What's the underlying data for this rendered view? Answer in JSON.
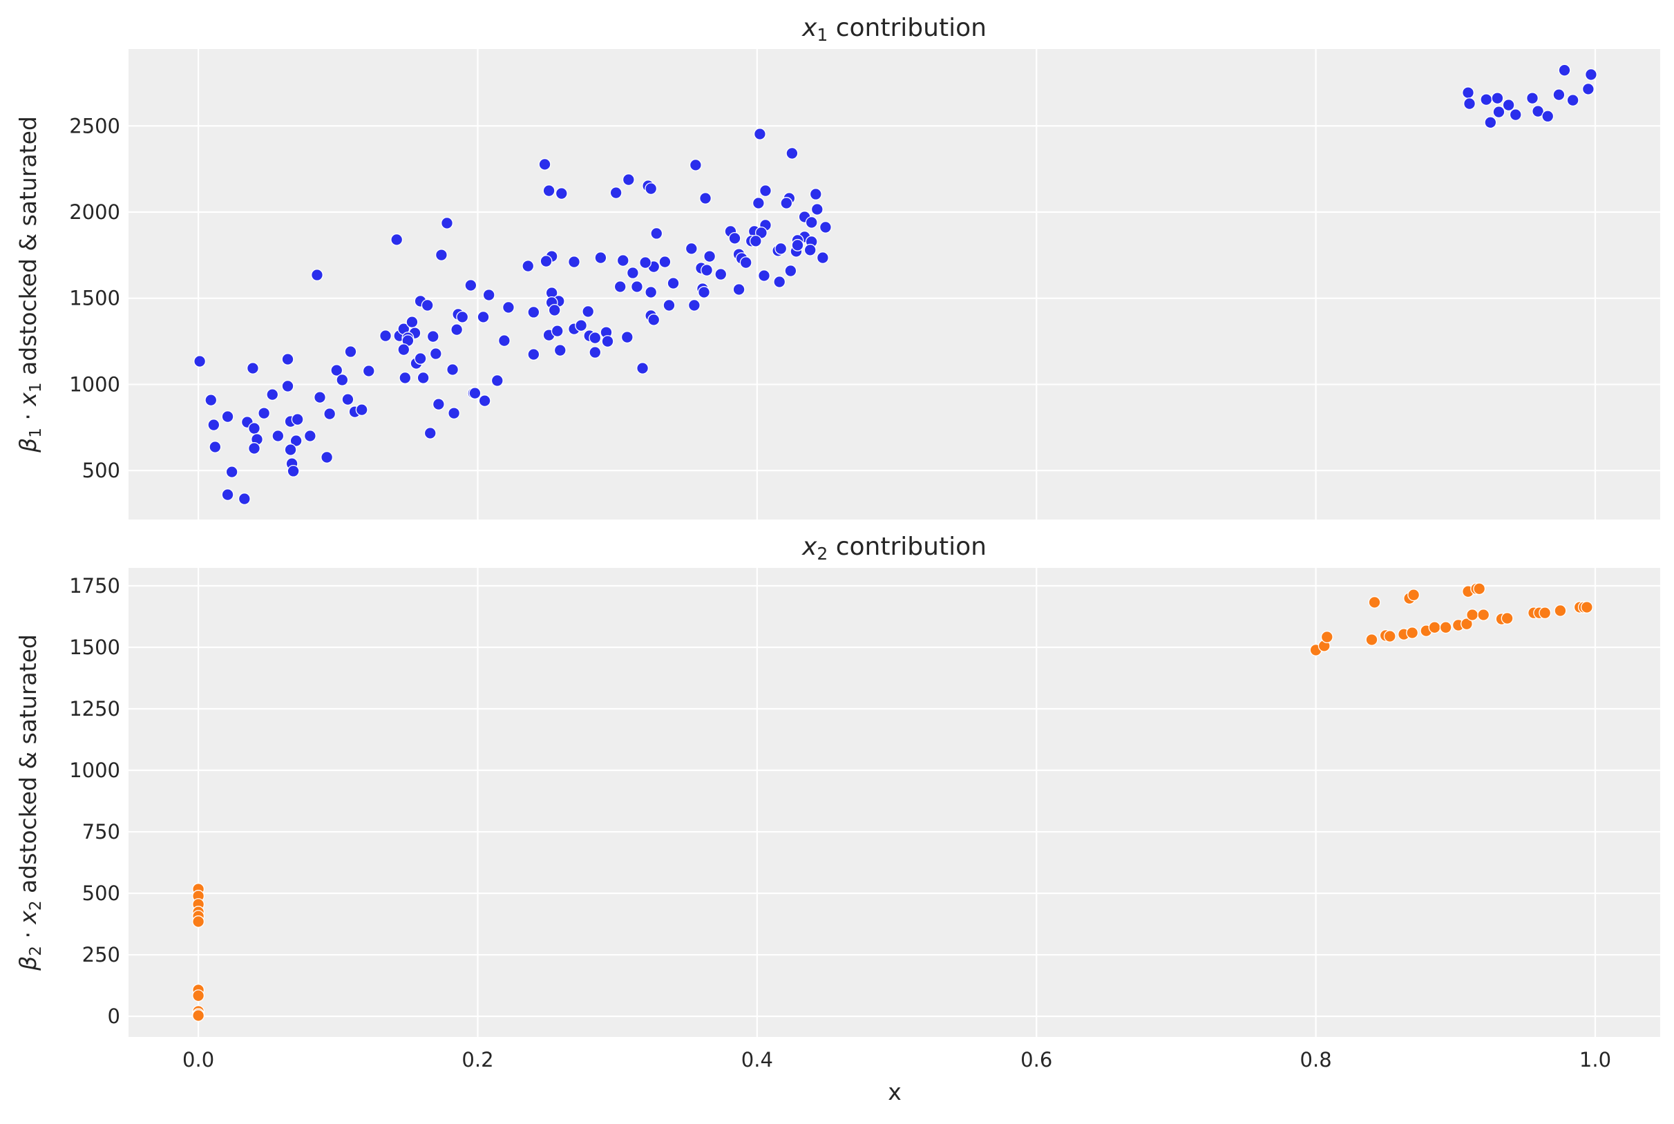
{
  "chart_data": [
    {
      "type": "scatter",
      "title": "x1 contribution",
      "title_var": "x",
      "title_sub": "1",
      "title_rest": " contribution",
      "xlabel": "",
      "ylabel": "β1 · x1 adstocked & saturated",
      "ylabel_parts": {
        "beta": "β",
        "beta_sub": "1",
        "dot": "·",
        "var": "x",
        "var_sub": "1",
        "rest": "adstocked & saturated"
      },
      "xlim": [
        -0.05,
        1.0465
      ],
      "ylim": [
        216,
        2946
      ],
      "xticks": [
        0.0,
        0.2,
        0.4,
        0.6,
        0.8,
        1.0
      ],
      "xtick_labels": [],
      "yticks": [
        500,
        1000,
        1500,
        2000,
        2500
      ],
      "ytick_labels": [
        "500",
        "1000",
        "1500",
        "2000",
        "2500"
      ],
      "grid": true,
      "color": "#2a2eec",
      "x": [
        0.001,
        0.009,
        0.011,
        0.012,
        0.021,
        0.024,
        0.021,
        0.033,
        0.035,
        0.04,
        0.042,
        0.04,
        0.039,
        0.047,
        0.053,
        0.057,
        0.064,
        0.064,
        0.066,
        0.071,
        0.07,
        0.066,
        0.067,
        0.068,
        0.08,
        0.085,
        0.087,
        0.092,
        0.094,
        0.099,
        0.103,
        0.109,
        0.107,
        0.112,
        0.117,
        0.122,
        0.134,
        0.142,
        0.144,
        0.147,
        0.153,
        0.155,
        0.15,
        0.15,
        0.147,
        0.148,
        0.156,
        0.159,
        0.161,
        0.159,
        0.164,
        0.168,
        0.17,
        0.172,
        0.166,
        0.174,
        0.178,
        0.183,
        0.182,
        0.185,
        0.186,
        0.189,
        0.195,
        0.197,
        0.248,
        0.251,
        0.26,
        0.299,
        0.308,
        0.322,
        0.324,
        0.356,
        0.363,
        0.402,
        0.425,
        0.406,
        0.401,
        0.423,
        0.421,
        0.442,
        0.443,
        0.434,
        0.439,
        0.449,
        0.406,
        0.398,
        0.403,
        0.396,
        0.399,
        0.381,
        0.384,
        0.434,
        0.429,
        0.439,
        0.438,
        0.428,
        0.429,
        0.447,
        0.415,
        0.417,
        0.387,
        0.389,
        0.392,
        0.424,
        0.405,
        0.416,
        0.387,
        0.366,
        0.353,
        0.36,
        0.364,
        0.374,
        0.361,
        0.362,
        0.355,
        0.337,
        0.34,
        0.328,
        0.334,
        0.326,
        0.32,
        0.311,
        0.304,
        0.288,
        0.269,
        0.253,
        0.249,
        0.236,
        0.302,
        0.314,
        0.324,
        0.324,
        0.326,
        0.307,
        0.318,
        0.253,
        0.258,
        0.253,
        0.255,
        0.24,
        0.222,
        0.208,
        0.204,
        0.219,
        0.24,
        0.259,
        0.251,
        0.257,
        0.269,
        0.274,
        0.279,
        0.28,
        0.284,
        0.292,
        0.293,
        0.284,
        0.214,
        0.198,
        0.205,
        0.909,
        0.91,
        0.922,
        0.93,
        0.931,
        0.938,
        0.943,
        0.925,
        0.955,
        0.959,
        0.966,
        0.974,
        0.978,
        0.984,
        0.995,
        0.997
      ],
      "y": [
        1134,
        909,
        765,
        637,
        813,
        492,
        360,
        336,
        781,
        745,
        681,
        629,
        1094,
        833,
        941,
        701,
        1146,
        990,
        785,
        797,
        673,
        621,
        540,
        497,
        701,
        1635,
        925,
        577,
        829,
        1082,
        1026,
        1190,
        913,
        841,
        853,
        1078,
        1282,
        1840,
        1282,
        1322,
        1362,
        1298,
        1270,
        1254,
        1202,
        1038,
        1122,
        1150,
        1038,
        1483,
        1459,
        1278,
        1178,
        885,
        717,
        1751,
        1936,
        833,
        1086,
        1318,
        1407,
        1391,
        1575,
        949,
        2277,
        2124,
        2108,
        2112,
        2188,
        2152,
        2136,
        2273,
        2080,
        2453,
        2341,
        2124,
        2052,
        2080,
        2052,
        2104,
        2016,
        1972,
        1940,
        1912,
        1924,
        1888,
        1880,
        1832,
        1832,
        1888,
        1848,
        1856,
        1836,
        1828,
        1780,
        1772,
        1808,
        1735,
        1776,
        1788,
        1755,
        1731,
        1707,
        1659,
        1631,
        1595,
        1551,
        1743,
        1788,
        1675,
        1663,
        1639,
        1555,
        1535,
        1459,
        1459,
        1587,
        1876,
        1711,
        1683,
        1707,
        1647,
        1719,
        1735,
        1711,
        1743,
        1715,
        1687,
        1567,
        1567,
        1535,
        1399,
        1375,
        1274,
        1094,
        1531,
        1483,
        1475,
        1431,
        1419,
        1447,
        1519,
        1391,
        1254,
        1174,
        1198,
        1286,
        1310,
        1322,
        1342,
        1423,
        1282,
        1270,
        1302,
        1250,
        1186,
        1022,
        949,
        905,
        2693,
        2629,
        2653,
        2661,
        2581,
        2621,
        2565,
        2520,
        2661,
        2585,
        2556,
        2681,
        2823,
        2649,
        2714,
        2798
      ]
    },
    {
      "type": "scatter",
      "title": "x2 contribution",
      "title_var": "x",
      "title_sub": "2",
      "title_rest": " contribution",
      "xlabel": "x",
      "ylabel": "β2 · x2 adstocked & saturated",
      "ylabel_parts": {
        "beta": "β",
        "beta_sub": "2",
        "dot": "·",
        "var": "x",
        "var_sub": "2",
        "rest": "adstocked & saturated"
      },
      "xlim": [
        -0.05,
        1.0465
      ],
      "ylim": [
        -84,
        1823
      ],
      "xticks": [
        0.0,
        0.2,
        0.4,
        0.6,
        0.8,
        1.0
      ],
      "xtick_labels": [
        "0.0",
        "0.2",
        "0.4",
        "0.6",
        "0.8",
        "1.0"
      ],
      "yticks": [
        0,
        250,
        500,
        750,
        1000,
        1250,
        1500,
        1750
      ],
      "ytick_labels": [
        "0",
        "250",
        "500",
        "750",
        "1000",
        "1250",
        "1500",
        "1750"
      ],
      "grid": true,
      "color": "#fa7c17",
      "x": [
        0,
        0,
        0,
        0,
        0,
        0,
        0,
        0,
        0,
        0,
        0,
        0.8,
        0.806,
        0.808,
        0.84,
        0.842,
        0.85,
        0.853,
        0.863,
        0.869,
        0.867,
        0.87,
        0.879,
        0.885,
        0.893,
        0.902,
        0.908,
        0.909,
        0.915,
        0.917,
        0.912,
        0.92,
        0.933,
        0.937,
        0.956,
        0.96,
        0.964,
        0.975,
        0.989,
        0.992,
        0.994
      ],
      "y": [
        517,
        489,
        455,
        424,
        407,
        385,
        107,
        84,
        20,
        8,
        3,
        1489,
        1506,
        1542,
        1531,
        1683,
        1548,
        1545,
        1553,
        1559,
        1699,
        1713,
        1567,
        1581,
        1581,
        1590,
        1595,
        1727,
        1738,
        1738,
        1632,
        1632,
        1615,
        1618,
        1640,
        1640,
        1640,
        1649,
        1663,
        1663,
        1663
      ]
    }
  ],
  "figure": {
    "top_title": "x1 contribution",
    "bottom_title": "x2 contribution",
    "shared_xlabel": "x"
  }
}
